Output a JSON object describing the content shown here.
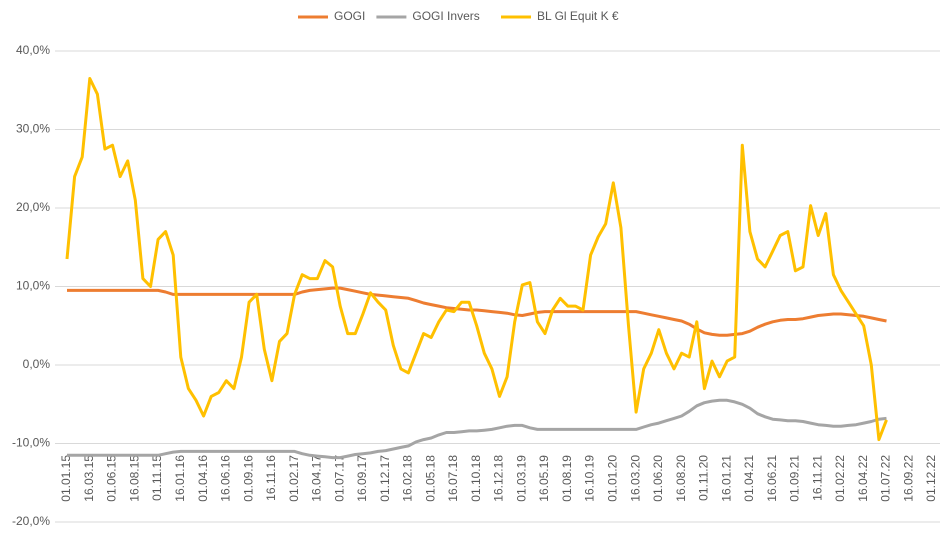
{
  "chart_data": {
    "type": "line",
    "categories": [
      "01.01.15",
      null,
      null,
      "16.03.15",
      null,
      null,
      "01.06.15",
      null,
      null,
      "16.08.15",
      null,
      null,
      "01.11.15",
      null,
      null,
      "16.01.16",
      null,
      null,
      "01.04.16",
      null,
      null,
      "16.06.16",
      null,
      null,
      "01.09.16",
      null,
      null,
      "16.11.16",
      null,
      null,
      "01.02.17",
      null,
      null,
      "16.04.17",
      null,
      null,
      "01.07.17",
      null,
      null,
      "16.09.17",
      null,
      null,
      "01.12.17",
      null,
      null,
      "16.02.18",
      null,
      null,
      "01.05.18",
      null,
      null,
      "16.07.18",
      null,
      null,
      "01.10.18",
      null,
      null,
      "16.12.18",
      null,
      null,
      "01.03.19",
      null,
      null,
      "16.05.19",
      null,
      null,
      "01.08.19",
      null,
      null,
      "16.10.19",
      null,
      null,
      "01.01.20",
      null,
      null,
      "16.03.20",
      null,
      null,
      "01.06.20",
      null,
      null,
      "16.08.20",
      null,
      null,
      "01.11.20",
      null,
      null,
      "16.01.21",
      null,
      null,
      "01.04.21",
      null,
      null,
      "16.06.21",
      null,
      null,
      "01.09.21",
      null,
      null,
      "16.11.21",
      null,
      null,
      "01.02.22",
      null,
      null,
      "16.04.22",
      null,
      null,
      "01.07.22",
      null,
      null,
      "16.09.22",
      null,
      null,
      "01.12.22"
    ],
    "series": [
      {
        "name": "GOGI",
        "color": "#ED7D31",
        "values": [
          9.5,
          9.5,
          9.5,
          9.5,
          9.5,
          9.5,
          9.5,
          9.5,
          9.5,
          9.5,
          9.5,
          9.5,
          9.5,
          9.3,
          9.0,
          9.0,
          9.0,
          9.0,
          9.0,
          9.0,
          9.0,
          9.0,
          9.0,
          9.0,
          9.0,
          9.0,
          9.0,
          9.0,
          9.0,
          9.0,
          9.0,
          9.3,
          9.5,
          9.6,
          9.7,
          9.8,
          9.8,
          9.6,
          9.4,
          9.2,
          9.0,
          8.9,
          8.8,
          8.7,
          8.6,
          8.5,
          8.2,
          7.9,
          7.7,
          7.5,
          7.3,
          7.2,
          7.1,
          7.0,
          7.0,
          6.9,
          6.8,
          6.7,
          6.6,
          6.4,
          6.3,
          6.5,
          6.7,
          6.8,
          6.8,
          6.8,
          6.8,
          6.8,
          6.8,
          6.8,
          6.8,
          6.8,
          6.8,
          6.8,
          6.8,
          6.8,
          6.6,
          6.4,
          6.2,
          6.0,
          5.8,
          5.6,
          5.2,
          4.6,
          4.1,
          3.9,
          3.8,
          3.8,
          3.9,
          4.0,
          4.3,
          4.8,
          5.2,
          5.5,
          5.7,
          5.8,
          5.8,
          5.9,
          6.1,
          6.3,
          6.4,
          6.5,
          6.5,
          6.4,
          6.3,
          6.2,
          6.0,
          5.8,
          5.6,
          null,
          null,
          null,
          null,
          null,
          null
        ]
      },
      {
        "name": "GOGI Invers",
        "color": "#A5A5A5",
        "values": [
          -11.5,
          -11.5,
          -11.5,
          -11.5,
          -11.5,
          -11.5,
          -11.5,
          -11.5,
          -11.5,
          -11.5,
          -11.5,
          -11.5,
          -11.5,
          -11.3,
          -11.1,
          -11.0,
          -11.0,
          -11.0,
          -11.0,
          -11.0,
          -11.0,
          -11.0,
          -11.0,
          -11.0,
          -11.0,
          -11.0,
          -11.0,
          -11.0,
          -11.0,
          -11.0,
          -11.0,
          -11.3,
          -11.5,
          -11.6,
          -11.7,
          -11.8,
          -11.8,
          -11.6,
          -11.4,
          -11.3,
          -11.2,
          -11.0,
          -10.9,
          -10.7,
          -10.5,
          -10.3,
          -9.8,
          -9.5,
          -9.3,
          -8.9,
          -8.6,
          -8.6,
          -8.5,
          -8.4,
          -8.4,
          -8.3,
          -8.2,
          -8.0,
          -7.8,
          -7.7,
          -7.7,
          -8.0,
          -8.2,
          -8.2,
          -8.2,
          -8.2,
          -8.2,
          -8.2,
          -8.2,
          -8.2,
          -8.2,
          -8.2,
          -8.2,
          -8.2,
          -8.2,
          -8.2,
          -7.9,
          -7.6,
          -7.4,
          -7.1,
          -6.8,
          -6.5,
          -5.9,
          -5.2,
          -4.8,
          -4.6,
          -4.5,
          -4.5,
          -4.7,
          -5.0,
          -5.5,
          -6.2,
          -6.6,
          -6.9,
          -7.0,
          -7.1,
          -7.1,
          -7.2,
          -7.4,
          -7.6,
          -7.7,
          -7.8,
          -7.8,
          -7.7,
          -7.6,
          -7.4,
          -7.2,
          -6.9,
          -6.8,
          null,
          null,
          null,
          null,
          null,
          null
        ]
      },
      {
        "name": "BL Gl Equit K €",
        "color": "#FFC000",
        "values": [
          13.5,
          24,
          26.5,
          36.5,
          34.5,
          27.5,
          28,
          24,
          26,
          21,
          11,
          10,
          16,
          17,
          14,
          1,
          -3,
          -4.5,
          -6.5,
          -4,
          -3.5,
          -2,
          -3,
          1,
          8,
          9,
          2,
          -2,
          3,
          4,
          9,
          11.5,
          11,
          11,
          13.3,
          12.5,
          7.5,
          4,
          4,
          6.5,
          9.2,
          8,
          7,
          2.5,
          -0.5,
          -1,
          1.5,
          4,
          3.5,
          5.5,
          7,
          6.8,
          8,
          8,
          5,
          1.5,
          -0.5,
          -4,
          -1.5,
          5.5,
          10.2,
          10.5,
          5.5,
          4,
          7,
          8.5,
          7.5,
          7.5,
          7,
          14,
          16.3,
          18,
          23.2,
          17.5,
          5,
          -6,
          -0.5,
          1.5,
          4.5,
          1.5,
          -0.5,
          1.5,
          1,
          5.5,
          -3,
          0.5,
          -1.5,
          0.5,
          1,
          28,
          17,
          13.5,
          12.5,
          14.5,
          16.5,
          17,
          12,
          12.5,
          20.3,
          16.5,
          19.3,
          11.5,
          9.5,
          8,
          6.5,
          5,
          0,
          -9.5,
          -7,
          null,
          null,
          null,
          null,
          null,
          null
        ]
      }
    ],
    "ylim": [
      -20,
      40
    ],
    "yticks": [
      {
        "value": -20,
        "label": "-20,0%"
      },
      {
        "value": -10,
        "label": "-10,0%"
      },
      {
        "value": 0,
        "label": "0,0%"
      },
      {
        "value": 10,
        "label": "10,0%"
      },
      {
        "value": 20,
        "label": "20,0%"
      },
      {
        "value": 30,
        "label": "30,0%"
      },
      {
        "value": 40,
        "label": "40,0%"
      }
    ],
    "grid": true,
    "legend": "top"
  }
}
